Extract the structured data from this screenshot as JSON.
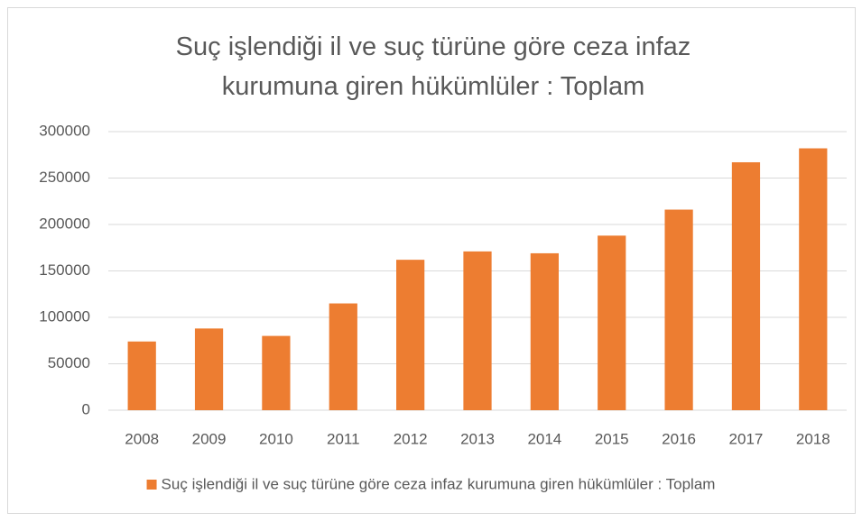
{
  "chart_data": {
    "type": "bar",
    "title": "Suç işlendiği il ve suç türüne göre ceza infaz kurumuna giren hükümlüler : Toplam",
    "categories": [
      "2008",
      "2009",
      "2010",
      "2011",
      "2012",
      "2013",
      "2014",
      "2015",
      "2016",
      "2017",
      "2018"
    ],
    "series": [
      {
        "name": "Suç işlendiği il ve suç türüne göre ceza infaz kurumuna giren hükümlüler : Toplam",
        "color": "#ed7d31",
        "values": [
          74000,
          88000,
          80000,
          115000,
          162000,
          171000,
          169000,
          188000,
          216000,
          267000,
          282000
        ]
      }
    ],
    "ylim": [
      0,
      300000
    ],
    "yticks": [
      0,
      50000,
      100000,
      150000,
      200000,
      250000,
      300000
    ],
    "grid": true,
    "legend": "bottom"
  }
}
